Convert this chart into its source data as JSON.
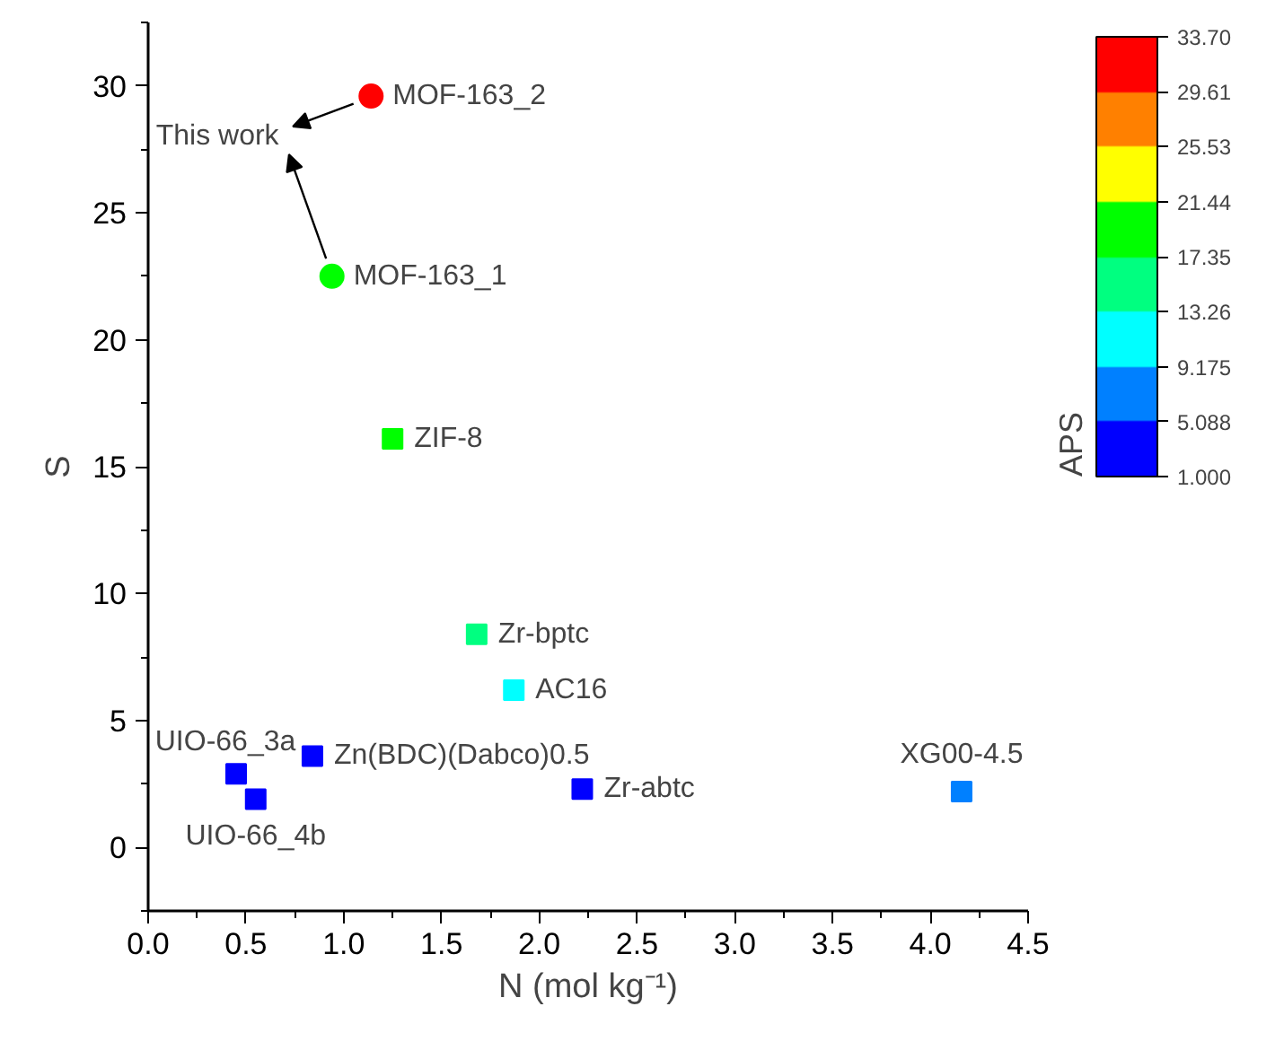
{
  "chart_data": {
    "type": "scatter",
    "xlabel": "N (mol kg⁻¹)",
    "ylabel": "S",
    "clabel": "APS",
    "xlim": [
      0,
      4.5
    ],
    "xticks": [
      {
        "value": 0,
        "label": "0.0"
      },
      {
        "value": 0.5,
        "label": "0.5"
      },
      {
        "value": 1,
        "label": "1.0"
      },
      {
        "value": 1.5,
        "label": "1.5"
      },
      {
        "value": 2,
        "label": "2.0"
      },
      {
        "value": 2.5,
        "label": "2.5"
      },
      {
        "value": 3,
        "label": "3.0"
      },
      {
        "value": 3.5,
        "label": "3.5"
      },
      {
        "value": 4,
        "label": "4.0"
      },
      {
        "value": 4.5,
        "label": "4.5"
      }
    ],
    "ylim": [
      -2.5,
      32.5
    ],
    "yticks": [
      0,
      5,
      10,
      15,
      20,
      25,
      30
    ],
    "clim": [
      1.0,
      33.7
    ],
    "cticks": [
      {
        "value": 1.0,
        "label": "1.000"
      },
      {
        "value": 5.088,
        "label": "5.088"
      },
      {
        "value": 9.175,
        "label": "9.175"
      },
      {
        "value": 13.26,
        "label": "13.26"
      },
      {
        "value": 17.35,
        "label": "17.35"
      },
      {
        "value": 21.44,
        "label": "21.44"
      },
      {
        "value": 25.53,
        "label": "25.53"
      },
      {
        "value": 29.61,
        "label": "29.61"
      },
      {
        "value": 33.7,
        "label": "33.70"
      }
    ],
    "grid": false,
    "series": [
      {
        "marker": "circle",
        "x": [
          1.14,
          0.94
        ],
        "values": [
          29.6,
          22.5
        ],
        "colors": [
          "#ff0000",
          "#00ff00"
        ]
      },
      {
        "marker": "square",
        "x": [
          1.25,
          1.68,
          1.87,
          0.45,
          0.55,
          0.84,
          2.22,
          4.16
        ],
        "values": [
          16.1,
          8.4,
          6.2,
          2.9,
          1.9,
          3.6,
          2.3,
          2.2
        ],
        "colors": [
          "#00ff00",
          "#00ff80",
          "#00ffff",
          "#0000ff",
          "#0000ff",
          "#0000ff",
          "#0000ff",
          "#0080ff"
        ]
      }
    ],
    "annotations": [
      {
        "text": "MOF-163_2",
        "x": 1.14,
        "y": 29.6
      },
      {
        "text": "MOF-163_1",
        "x": 0.94,
        "y": 22.5
      },
      {
        "text": "ZIF-8",
        "x": 1.25,
        "y": 16.1
      },
      {
        "text": "Zr-bptc",
        "x": 1.68,
        "y": 8.4
      },
      {
        "text": "AC16",
        "x": 1.87,
        "y": 6.2
      },
      {
        "text": "UIO-66_3a",
        "x": 0.45,
        "y": 2.9
      },
      {
        "text": "UIO-66_4b",
        "x": 0.55,
        "y": 1.9
      },
      {
        "text": "Zn(BDC)(Dabco)0.5",
        "x": 0.84,
        "y": 3.6
      },
      {
        "text": "Zr-abtc",
        "x": 2.22,
        "y": 2.3
      },
      {
        "text": "XG00-4.5",
        "x": 4.16,
        "y": 2.2
      },
      "This work"
    ]
  }
}
